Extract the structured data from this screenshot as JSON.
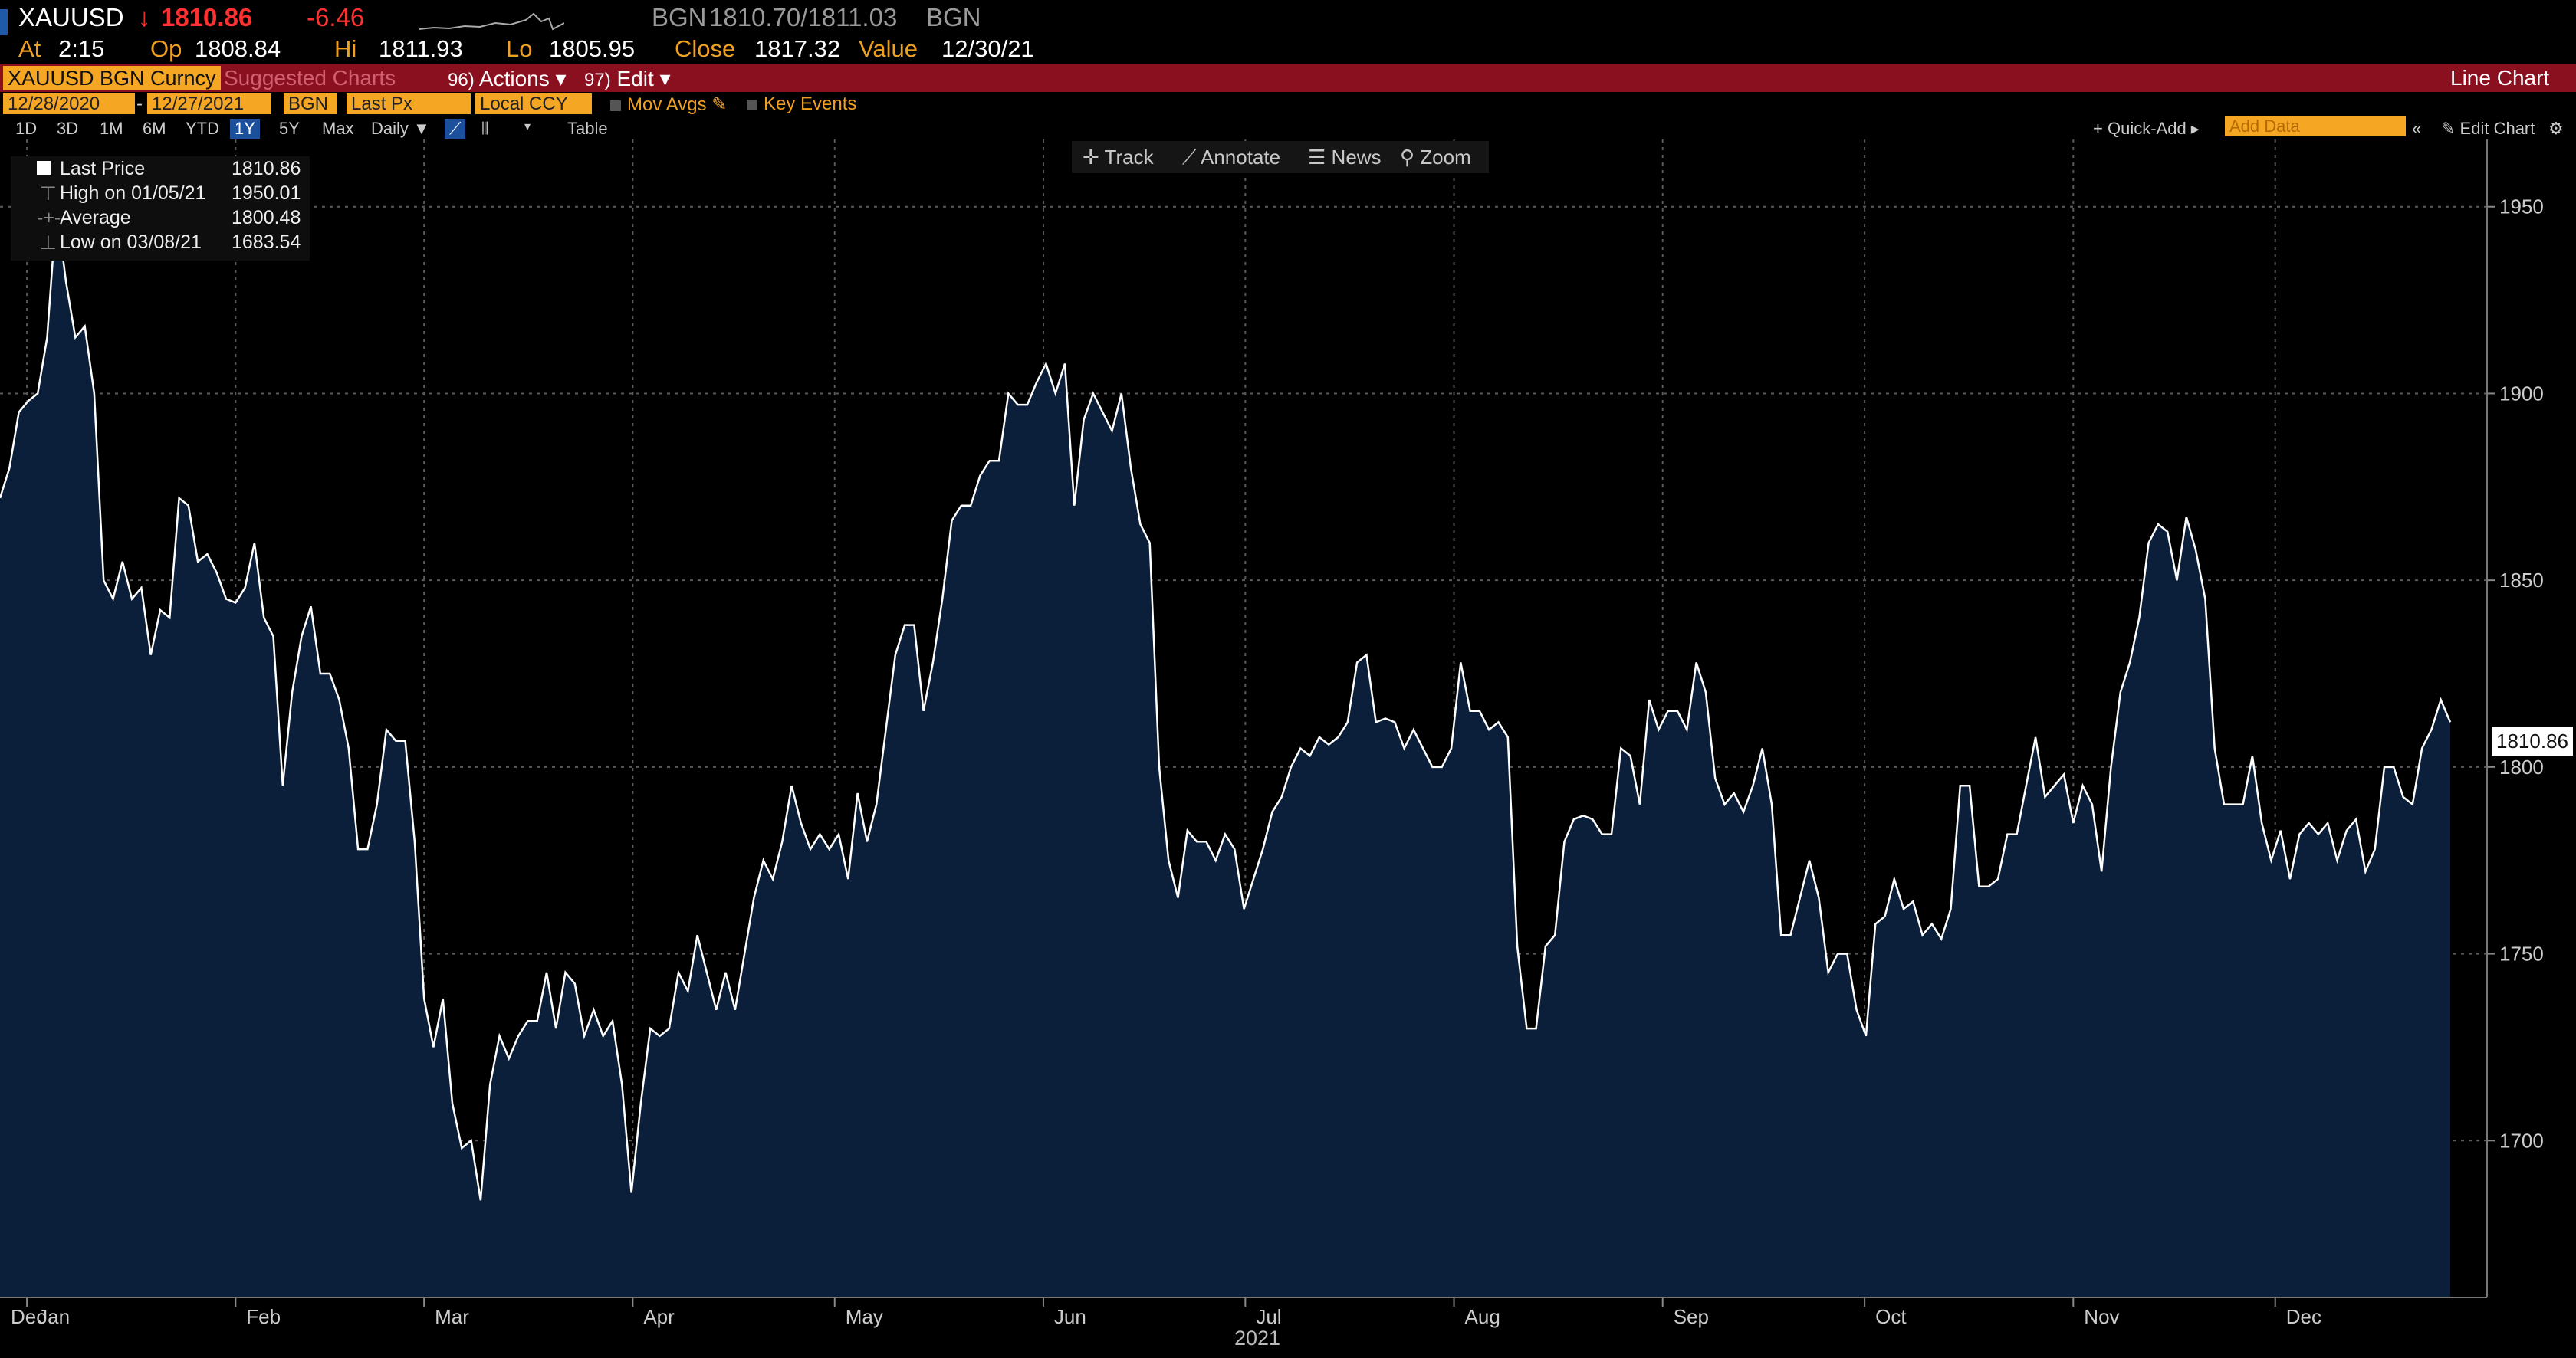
{
  "header": {
    "ticker": "XAUUSD",
    "arrow": "↓",
    "last": "1810.86",
    "change": "-6.46",
    "source_label": "BGN",
    "bid_ask": "1810.70/1811.03",
    "source_label2": "BGN",
    "at_label": "At",
    "time": "2:15",
    "op_label": "Op",
    "open": "1808.84",
    "hi_label": "Hi",
    "high": "1811.93",
    "lo_label": "Lo",
    "low": "1805.95",
    "close_label": "Close",
    "close": "1817.32",
    "value_label": "Value",
    "value_date": "12/30/21"
  },
  "command_bar": {
    "security": "XAUUSD BGN Curncy",
    "suggested": "Suggested Charts",
    "actions_num": "96)",
    "actions": "Actions",
    "edit_num": "97)",
    "edit": "Edit",
    "view": "Line Chart"
  },
  "settings": {
    "start_date": "12/28/2020",
    "end_date": "12/27/2021",
    "source": "BGN",
    "field": "Last Px",
    "currency": "Local CCY",
    "mov_avgs": "Mov Avgs",
    "key_events": "Key Events"
  },
  "periods": [
    "1D",
    "3D",
    "1M",
    "6M",
    "YTD",
    "1Y",
    "5Y",
    "Max"
  ],
  "active_period": "1Y",
  "frequency": "Daily",
  "table_label": "Table",
  "quick_add": "Quick-Add",
  "add_data_placeholder": "Add Data",
  "edit_chart": "Edit Chart",
  "tools": {
    "track": "Track",
    "annotate": "Annotate",
    "news": "News",
    "zoom": "Zoom"
  },
  "legend": {
    "last_label": "Last Price",
    "last_value": "1810.86",
    "high_label": "High on 01/05/21",
    "high_value": "1950.01",
    "avg_label": "Average",
    "avg_value": "1800.48",
    "low_label": "Low on 03/08/21",
    "low_value": "1683.54"
  },
  "colors": {
    "line": "#ffffff",
    "area": "#0b1f3a",
    "grid": "#5a5a5a",
    "command_bar": "#8a1020",
    "accent": "#f5a623"
  },
  "chart_data": {
    "type": "area",
    "grid": true,
    "x_start": "2020-12-28",
    "x_end": "2021-12-27",
    "ylim": [
      1658,
      1968
    ],
    "y_ticks": [
      1700,
      1750,
      1800,
      1850,
      1900,
      1950
    ],
    "x_tick_labels": [
      "Dec",
      "Jan",
      "Feb",
      "Mar",
      "Apr",
      "May",
      "Jun",
      "Jul",
      "Aug",
      "Sep",
      "Oct",
      "Nov",
      "Dec"
    ],
    "year_label": "2021",
    "last_value_label": "1810.86",
    "series": [
      {
        "values": [
          1872,
          1880,
          1895,
          1898,
          1900,
          1915,
          1950,
          1930,
          1915,
          1918,
          1900,
          1850,
          1845,
          1855,
          1845,
          1848,
          1830,
          1842,
          1840,
          1872,
          1870,
          1855,
          1857,
          1852,
          1845,
          1844,
          1848,
          1860,
          1840,
          1835,
          1795,
          1820,
          1835,
          1843,
          1825,
          1825,
          1818,
          1805,
          1778,
          1778,
          1790,
          1810,
          1807,
          1807,
          1780,
          1738,
          1725,
          1738,
          1710,
          1698,
          1700,
          1684,
          1715,
          1728,
          1722,
          1728,
          1732,
          1732,
          1745,
          1730,
          1745,
          1742,
          1728,
          1735,
          1728,
          1732,
          1715,
          1686,
          1710,
          1730,
          1728,
          1730,
          1745,
          1740,
          1755,
          1745,
          1735,
          1745,
          1735,
          1750,
          1765,
          1775,
          1770,
          1780,
          1795,
          1785,
          1778,
          1782,
          1778,
          1782,
          1770,
          1793,
          1780,
          1790,
          1810,
          1830,
          1838,
          1838,
          1815,
          1828,
          1845,
          1866,
          1870,
          1870,
          1878,
          1882,
          1882,
          1900,
          1897,
          1897,
          1903,
          1908,
          1900,
          1908,
          1870,
          1893,
          1900,
          1895,
          1890,
          1900,
          1880,
          1865,
          1860,
          1800,
          1775,
          1765,
          1783,
          1780,
          1780,
          1775,
          1782,
          1778,
          1762,
          1770,
          1778,
          1788,
          1792,
          1800,
          1805,
          1803,
          1808,
          1806,
          1808,
          1812,
          1828,
          1830,
          1812,
          1813,
          1812,
          1805,
          1810,
          1805,
          1800,
          1800,
          1805,
          1828,
          1815,
          1815,
          1810,
          1812,
          1808,
          1752,
          1730,
          1730,
          1752,
          1755,
          1780,
          1786,
          1787,
          1786,
          1782,
          1782,
          1805,
          1803,
          1790,
          1818,
          1810,
          1815,
          1815,
          1810,
          1828,
          1820,
          1797,
          1790,
          1793,
          1788,
          1795,
          1805,
          1790,
          1755,
          1755,
          1765,
          1775,
          1765,
          1745,
          1750,
          1750,
          1735,
          1728,
          1758,
          1760,
          1770,
          1762,
          1764,
          1755,
          1758,
          1754,
          1762,
          1795,
          1795,
          1768,
          1768,
          1770,
          1782,
          1782,
          1795,
          1808,
          1792,
          1795,
          1798,
          1785,
          1795,
          1790,
          1772,
          1800,
          1820,
          1828,
          1840,
          1860,
          1865,
          1863,
          1850,
          1867,
          1858,
          1845,
          1805,
          1790,
          1790,
          1790,
          1803,
          1785,
          1775,
          1783,
          1770,
          1782,
          1785,
          1782,
          1785,
          1775,
          1783,
          1786,
          1772,
          1778,
          1800,
          1800,
          1792,
          1790,
          1805,
          1810,
          1818,
          1812
        ]
      }
    ]
  }
}
